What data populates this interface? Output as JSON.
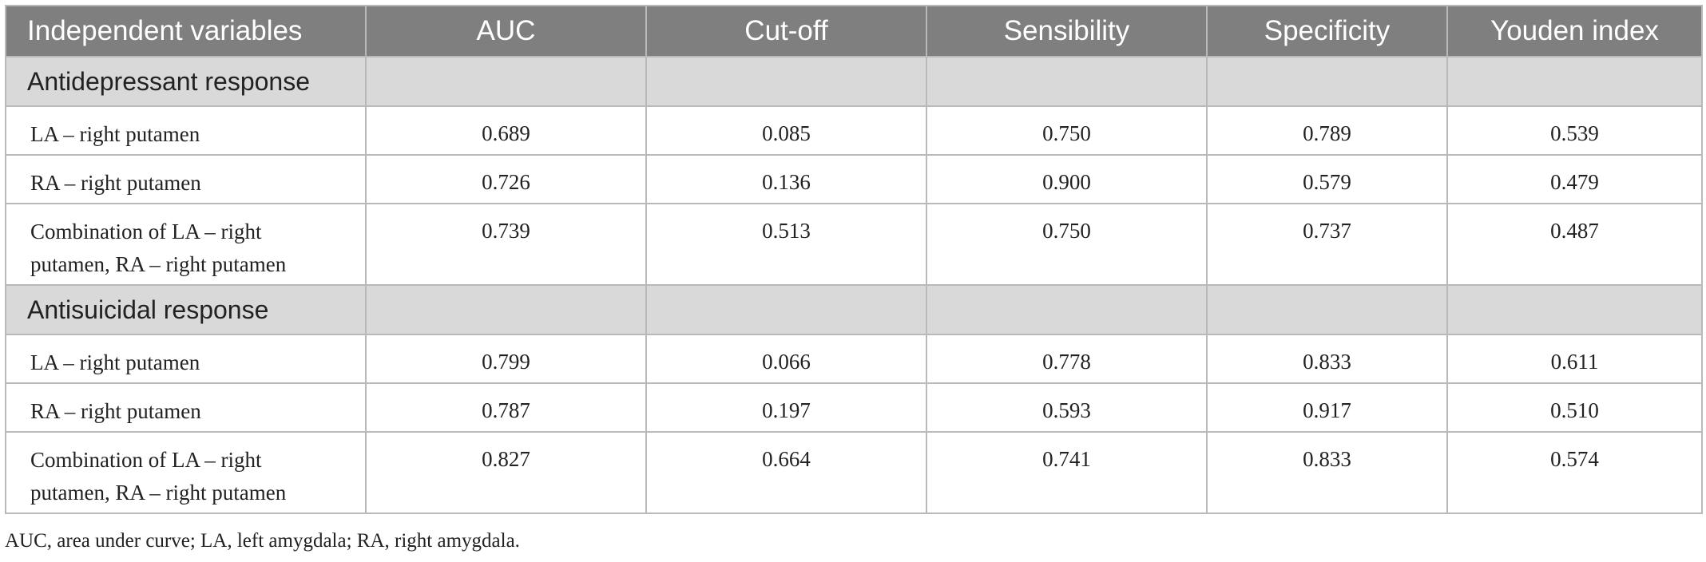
{
  "table": {
    "headers": [
      "Independent variables",
      "AUC",
      "Cut-off",
      "Sensibility",
      "Specificity",
      "Youden index"
    ],
    "sections": [
      {
        "title": "Antidepressant response",
        "rows": [
          {
            "variable": "LA – right putamen",
            "auc": "0.689",
            "cutoff": "0.085",
            "sensibility": "0.750",
            "specificity": "0.789",
            "youden": "0.539"
          },
          {
            "variable": "RA – right putamen",
            "auc": "0.726",
            "cutoff": "0.136",
            "sensibility": "0.900",
            "specificity": "0.579",
            "youden": "0.479"
          },
          {
            "variable_line1": "Combination of LA – right",
            "variable_line2": "putamen, RA – right putamen",
            "auc": "0.739",
            "cutoff": "0.513",
            "sensibility": "0.750",
            "specificity": "0.737",
            "youden": "0.487"
          }
        ]
      },
      {
        "title": "Antisuicidal response",
        "rows": [
          {
            "variable": "LA – right putamen",
            "auc": "0.799",
            "cutoff": "0.066",
            "sensibility": "0.778",
            "specificity": "0.833",
            "youden": "0.611"
          },
          {
            "variable": "RA – right putamen",
            "auc": "0.787",
            "cutoff": "0.197",
            "sensibility": "0.593",
            "specificity": "0.917",
            "youden": "0.510"
          },
          {
            "variable_line1": "Combination of LA – right",
            "variable_line2": "putamen, RA – right putamen",
            "auc": "0.827",
            "cutoff": "0.664",
            "sensibility": "0.741",
            "specificity": "0.833",
            "youden": "0.574"
          }
        ]
      }
    ]
  },
  "footnote": "AUC, area under curve; LA, left amygdala; RA, right amygdala.",
  "colors": {
    "header_bg": "#7f7f7f",
    "header_text": "#ffffff",
    "section_bg": "#d9d9d9",
    "border": "#b9b9b9"
  }
}
